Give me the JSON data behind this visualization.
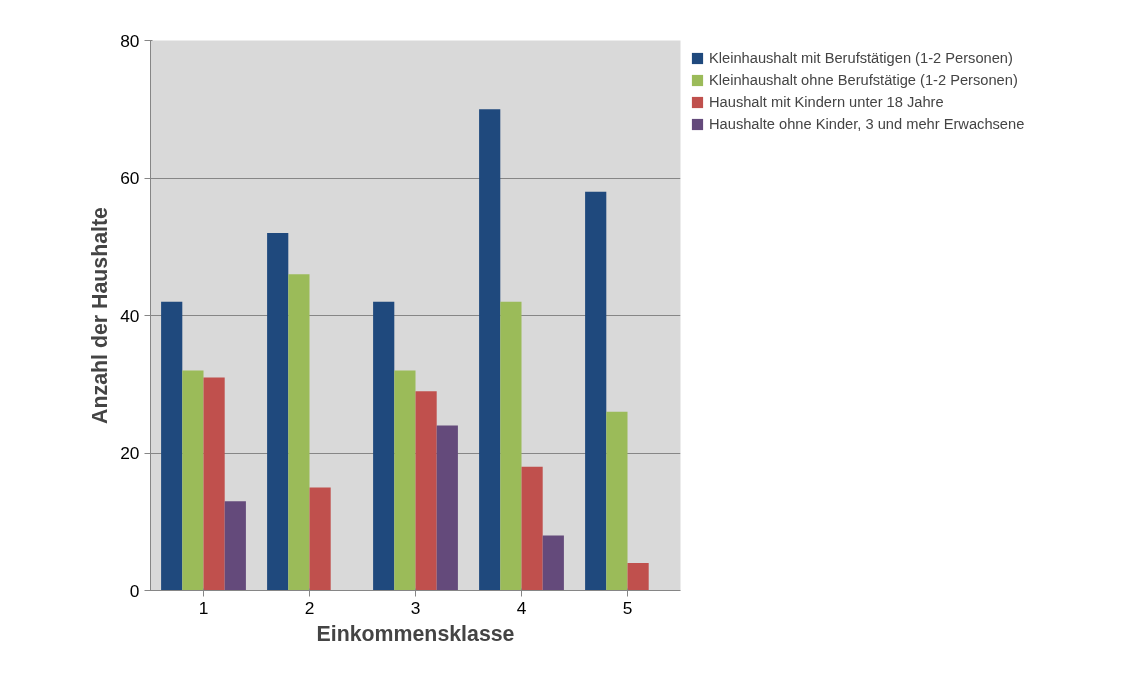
{
  "chart_data": {
    "type": "bar",
    "xlabel": "Einkommensklasse",
    "ylabel": "Anzahl der Haushalte",
    "categories": [
      "1",
      "2",
      "3",
      "4",
      "5"
    ],
    "series": [
      {
        "name": "Kleinhaushalt mit Berufstätigen (1-2 Personen)",
        "color": "#1f497d",
        "values": [
          42,
          52,
          42,
          70,
          58
        ]
      },
      {
        "name": "Kleinhaushalt ohne Berufstätige (1-2 Personen)",
        "color": "#9bbb59",
        "values": [
          32,
          46,
          32,
          42,
          26
        ]
      },
      {
        "name": "Haushalt mit Kindern unter 18 Jahre",
        "color": "#c0504d",
        "values": [
          31,
          15,
          29,
          18,
          4
        ]
      },
      {
        "name": "Haushalte ohne Kinder, 3 und mehr Erwachsene",
        "color": "#644a7b",
        "values": [
          13,
          0,
          24,
          8,
          0
        ]
      }
    ],
    "ylim": [
      0,
      80
    ],
    "yticks": [
      0,
      20,
      40,
      60,
      80
    ],
    "grid": "y",
    "legend": "right"
  }
}
